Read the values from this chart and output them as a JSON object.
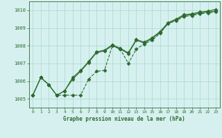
{
  "title": "Graphe pression niveau de la mer (hPa)",
  "bg_color": "#d6f0f0",
  "grid_color": "#a8d8c8",
  "line_color": "#2d6a2d",
  "xlim": [
    -0.5,
    23.5
  ],
  "ylim": [
    1004.5,
    1010.5
  ],
  "yticks": [
    1005,
    1006,
    1007,
    1008,
    1009,
    1010
  ],
  "xticks": [
    0,
    1,
    2,
    3,
    4,
    5,
    6,
    7,
    8,
    9,
    10,
    11,
    12,
    13,
    14,
    15,
    16,
    17,
    18,
    19,
    20,
    21,
    22,
    23
  ],
  "series": [
    {
      "x": [
        0,
        1,
        2,
        3,
        4,
        5,
        6,
        7,
        8,
        9,
        10,
        11,
        12,
        13,
        14,
        15,
        16,
        17,
        18,
        19,
        20,
        21,
        22,
        23
      ],
      "y": [
        1005.2,
        1006.2,
        1005.8,
        1005.2,
        1005.45,
        1006.1,
        1006.55,
        1007.05,
        1007.6,
        1007.7,
        1008.0,
        1007.8,
        1007.55,
        1008.3,
        1008.15,
        1008.4,
        1008.75,
        1009.25,
        1009.45,
        1009.7,
        1009.75,
        1009.85,
        1009.9,
        1009.95
      ],
      "marker": "D",
      "markersize": 2.5,
      "linewidth": 0.8,
      "linestyle": "-"
    },
    {
      "x": [
        0,
        1,
        2,
        3,
        4,
        5,
        6,
        7,
        8,
        9,
        10,
        11,
        12,
        13,
        14,
        15,
        16,
        17,
        18,
        19,
        20,
        21,
        22,
        23
      ],
      "y": [
        1005.2,
        1006.2,
        1005.8,
        1005.2,
        1005.2,
        1005.2,
        1005.2,
        1006.1,
        1006.55,
        1006.6,
        1008.0,
        1007.8,
        1007.0,
        1007.8,
        1008.1,
        1008.3,
        1008.7,
        1009.25,
        1009.4,
        1009.65,
        1009.7,
        1009.8,
        1009.85,
        1009.9
      ],
      "marker": "D",
      "markersize": 2.5,
      "linewidth": 0.8,
      "linestyle": "--"
    },
    {
      "x": [
        0,
        1,
        2,
        3,
        4,
        5,
        6,
        7,
        8,
        9,
        10,
        11,
        12,
        13,
        14,
        15,
        16,
        17,
        18,
        19,
        20,
        21,
        22,
        23
      ],
      "y": [
        1005.2,
        1006.2,
        1005.8,
        1005.2,
        1005.45,
        1006.2,
        1006.6,
        1007.1,
        1007.65,
        1007.75,
        1008.05,
        1007.85,
        1007.6,
        1008.35,
        1008.2,
        1008.45,
        1008.8,
        1009.3,
        1009.5,
        1009.75,
        1009.8,
        1009.9,
        1009.95,
        1010.05
      ],
      "marker": "D",
      "markersize": 2.5,
      "linewidth": 0.8,
      "linestyle": "-"
    }
  ]
}
